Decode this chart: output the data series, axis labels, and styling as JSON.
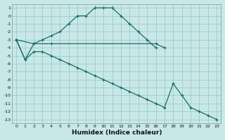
{
  "xlabel": "Humidex (Indice chaleur)",
  "bg_color": "#c8e8e8",
  "grid_color": "#a0c8c8",
  "line_color": "#1a6b6b",
  "xlim": [
    -0.5,
    23.5
  ],
  "ylim": [
    -13.5,
    1.5
  ],
  "yticks": [
    1,
    0,
    -1,
    -2,
    -3,
    -4,
    -5,
    -6,
    -7,
    -8,
    -9,
    -10,
    -11,
    -12,
    -13
  ],
  "xticks": [
    0,
    1,
    2,
    3,
    4,
    5,
    6,
    7,
    8,
    9,
    10,
    11,
    12,
    13,
    14,
    15,
    16,
    17,
    18,
    19,
    20,
    21,
    22,
    23
  ],
  "line1_x": [
    0,
    1,
    2,
    3,
    4,
    5,
    6,
    7,
    8,
    9,
    10,
    11,
    12,
    13,
    14,
    15,
    16
  ],
  "line1_y": [
    -3,
    -5.5,
    -3.5,
    -3,
    -2.5,
    -2,
    -1,
    0,
    0,
    1,
    1,
    1,
    0,
    -1,
    -2,
    -3,
    -4
  ],
  "line2_x": [
    0,
    2,
    4,
    16,
    17
  ],
  "line2_y": [
    -3,
    -3.5,
    -3.5,
    -3.5,
    -4
  ],
  "line3_x": [
    0,
    1,
    2,
    3,
    4,
    5,
    6,
    7,
    8,
    9,
    10,
    11,
    12,
    13,
    14,
    15,
    16,
    17,
    18,
    19,
    20,
    21,
    22,
    23
  ],
  "line3_y": [
    -3,
    -5.5,
    -4.5,
    -4.5,
    -5,
    -5.5,
    -6,
    -6.5,
    -7,
    -7.5,
    -8,
    -8.5,
    -9,
    -9.5,
    -10,
    -10.5,
    -11,
    -11.5,
    -8.5,
    -10,
    -11.5,
    -12,
    -12.5,
    -13
  ]
}
